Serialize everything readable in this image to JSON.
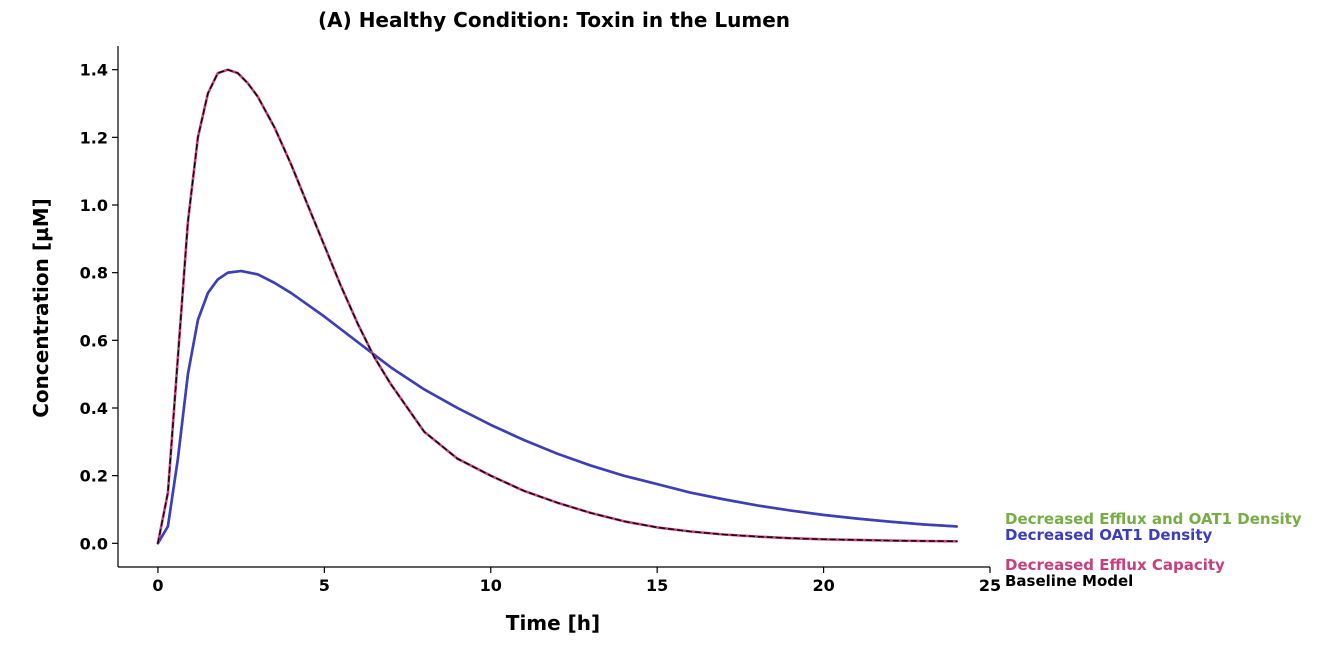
{
  "chart_data": {
    "type": "line",
    "title": "(A) Healthy Condition: Toxin in the Lumen",
    "xlabel": "Time [h]",
    "ylabel": "Concentration [µM]",
    "xlim": [
      -1.2,
      25
    ],
    "ylim": [
      -0.07,
      1.47
    ],
    "xticks": [
      0,
      5,
      10,
      15,
      20,
      25
    ],
    "yticks": [
      0.0,
      0.2,
      0.4,
      0.6,
      0.8,
      1.0,
      1.2,
      1.4
    ],
    "xtick_labels": [
      "0",
      "5",
      "10",
      "15",
      "20",
      "25"
    ],
    "ytick_labels": [
      "0.0",
      "0.2",
      "0.4",
      "0.6",
      "0.8",
      "1.0",
      "1.2",
      "1.4"
    ],
    "grid": false,
    "legend": "right, labels placed at line ends",
    "series": [
      {
        "name": "Baseline Model",
        "color": "#000000",
        "dashed": true,
        "x": [
          0,
          0.3,
          0.6,
          0.9,
          1.2,
          1.5,
          1.8,
          2.1,
          2.4,
          2.7,
          3.0,
          3.5,
          4.0,
          4.5,
          5.0,
          5.5,
          6.0,
          6.5,
          7.0,
          8.0,
          9.0,
          10.0,
          11.0,
          12.0,
          13.0,
          14.0,
          15.0,
          16.0,
          17.0,
          18.0,
          19.0,
          20.0,
          21.0,
          22.0,
          23.0,
          24.0
        ],
        "values": [
          0.0,
          0.15,
          0.55,
          0.95,
          1.2,
          1.33,
          1.39,
          1.4,
          1.39,
          1.36,
          1.32,
          1.23,
          1.12,
          1.0,
          0.88,
          0.76,
          0.65,
          0.55,
          0.47,
          0.33,
          0.25,
          0.2,
          0.155,
          0.12,
          0.09,
          0.065,
          0.047,
          0.035,
          0.026,
          0.02,
          0.015,
          0.012,
          0.01,
          0.008,
          0.007,
          0.006
        ]
      },
      {
        "name": "Decreased Efflux Capacity",
        "color": "#c5407f",
        "dashed": false,
        "x": [
          0,
          0.3,
          0.6,
          0.9,
          1.2,
          1.5,
          1.8,
          2.1,
          2.4,
          2.7,
          3.0,
          3.5,
          4.0,
          4.5,
          5.0,
          5.5,
          6.0,
          6.5,
          7.0,
          8.0,
          9.0,
          10.0,
          11.0,
          12.0,
          13.0,
          14.0,
          15.0,
          16.0,
          17.0,
          18.0,
          19.0,
          20.0,
          21.0,
          22.0,
          23.0,
          24.0
        ],
        "values": [
          0.0,
          0.15,
          0.55,
          0.95,
          1.2,
          1.33,
          1.39,
          1.4,
          1.39,
          1.36,
          1.32,
          1.23,
          1.12,
          1.0,
          0.88,
          0.76,
          0.65,
          0.55,
          0.47,
          0.33,
          0.25,
          0.2,
          0.155,
          0.12,
          0.09,
          0.065,
          0.047,
          0.035,
          0.026,
          0.02,
          0.015,
          0.012,
          0.01,
          0.008,
          0.007,
          0.006
        ]
      },
      {
        "name": "Decreased OAT1 Density",
        "color": "#3d3dbf",
        "dashed": false,
        "x": [
          0,
          0.3,
          0.6,
          0.9,
          1.2,
          1.5,
          1.8,
          2.1,
          2.5,
          3.0,
          3.5,
          4.0,
          5.0,
          6.0,
          7.0,
          8.0,
          9.0,
          10.0,
          11.0,
          12.0,
          13.0,
          14.0,
          15.0,
          16.0,
          17.0,
          18.0,
          19.0,
          20.0,
          21.0,
          22.0,
          23.0,
          24.0
        ],
        "values": [
          0.0,
          0.05,
          0.25,
          0.5,
          0.66,
          0.74,
          0.78,
          0.8,
          0.805,
          0.795,
          0.77,
          0.74,
          0.67,
          0.595,
          0.52,
          0.455,
          0.4,
          0.35,
          0.305,
          0.265,
          0.23,
          0.2,
          0.175,
          0.15,
          0.13,
          0.112,
          0.097,
          0.084,
          0.073,
          0.064,
          0.056,
          0.05
        ]
      },
      {
        "name": "Decreased Efflux and OAT1 Density",
        "color": "#76ad44",
        "dashed": false,
        "x": [
          0,
          0.3,
          0.6,
          0.9,
          1.2,
          1.5,
          1.8,
          2.1,
          2.5,
          3.0,
          3.5,
          4.0,
          5.0,
          6.0,
          7.0,
          8.0,
          9.0,
          10.0,
          11.0,
          12.0,
          13.0,
          14.0,
          15.0,
          16.0,
          17.0,
          18.0,
          19.0,
          20.0,
          21.0,
          22.0,
          23.0,
          24.0
        ],
        "values": [
          0.0,
          0.05,
          0.25,
          0.5,
          0.66,
          0.74,
          0.78,
          0.8,
          0.805,
          0.795,
          0.77,
          0.74,
          0.67,
          0.595,
          0.52,
          0.455,
          0.4,
          0.35,
          0.305,
          0.265,
          0.23,
          0.2,
          0.175,
          0.15,
          0.13,
          0.112,
          0.097,
          0.084,
          0.073,
          0.064,
          0.056,
          0.05
        ]
      }
    ],
    "legend_entries": [
      {
        "label": "Decreased Efflux and OAT1 Density",
        "color": "#76ad44"
      },
      {
        "label": "Decreased OAT1 Density",
        "color": "#3d3dbf"
      },
      {
        "label": "Decreased Efflux Capacity",
        "color": "#c5407f"
      },
      {
        "label": "Baseline Model",
        "color": "#000000"
      }
    ]
  }
}
